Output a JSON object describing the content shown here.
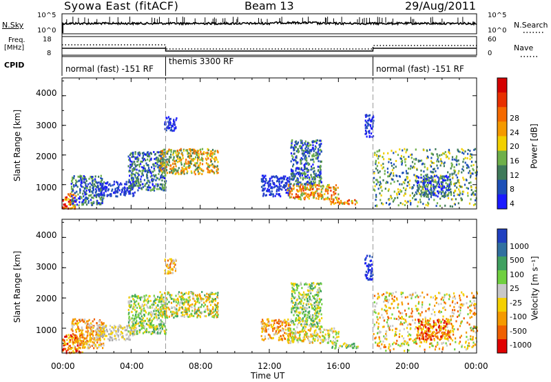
{
  "header": {
    "station": "Syowa East (fitACF)",
    "beam": "Beam 13",
    "date": "29/Aug/2011"
  },
  "noise_panel": {
    "left_label": "N.Sky",
    "right_label": "N.Search",
    "left_ticks": [
      "10^5",
      "10^0"
    ],
    "right_ticks": [
      "10^5",
      "10^0"
    ]
  },
  "freq_panel": {
    "left_label_1": "Freq.",
    "left_label_2": "[MHz]",
    "right_label": "Nave",
    "left_ticks": [
      "18",
      "8"
    ],
    "right_ticks": [
      "60",
      "0"
    ],
    "cpid_label": "CPID"
  },
  "cpid_segments": [
    {
      "label": "normal (fast) -151 RF",
      "start_hour": 0,
      "end_hour": 6
    },
    {
      "label": "themis 3300 RF",
      "start_hour": 6,
      "end_hour": 18
    },
    {
      "label": "normal (fast) -151 RF",
      "start_hour": 18,
      "end_hour": 24
    }
  ],
  "x_axis": {
    "title": "Time UT",
    "ticks": [
      "00:00",
      "04:00",
      "08:00",
      "12:00",
      "16:00",
      "20:00",
      "00:00"
    ]
  },
  "chart_data": [
    {
      "type": "heatmap",
      "panel": "power",
      "ylabel": "Slant Range [km]",
      "xlim_hours": [
        0,
        24
      ],
      "ylim_km": [
        180,
        4600
      ],
      "y_ticks": [
        1000,
        2000,
        3000,
        4000
      ],
      "colorbar_label": "Power [dB]",
      "colorbar_ticks": [
        "4",
        "8",
        "12",
        "16",
        "20",
        "24",
        "28"
      ],
      "colorbar_colors": [
        "#1a1aff",
        "#1e50b8",
        "#3f7a5a",
        "#6fb04a",
        "#f2d000",
        "#f59a00",
        "#f56a00",
        "#e83000",
        "#d40000"
      ],
      "regions": [
        {
          "t0": 0.0,
          "t1": 0.8,
          "r0": 180,
          "r1": 700,
          "palette": "red_orange"
        },
        {
          "t0": 0.5,
          "t1": 2.4,
          "r0": 300,
          "r1": 1300,
          "palette": "blue_green"
        },
        {
          "t0": 2.0,
          "t1": 4.2,
          "r0": 600,
          "r1": 1100,
          "palette": "blue"
        },
        {
          "t0": 3.8,
          "t1": 6.0,
          "r0": 800,
          "r1": 2100,
          "palette": "blue_green"
        },
        {
          "t0": 5.6,
          "t1": 9.0,
          "r0": 1350,
          "r1": 2200,
          "palette": "green_yellow_orange"
        },
        {
          "t0": 5.9,
          "t1": 6.6,
          "r0": 2800,
          "r1": 3300,
          "palette": "blue"
        },
        {
          "t0": 11.5,
          "t1": 13.2,
          "r0": 600,
          "r1": 1300,
          "palette": "blue"
        },
        {
          "t0": 13.0,
          "t1": 16.0,
          "r0": 500,
          "r1": 1000,
          "palette": "orange_yellow"
        },
        {
          "t0": 13.2,
          "t1": 15.0,
          "r0": 1000,
          "r1": 2500,
          "palette": "blue_green"
        },
        {
          "t0": 15.5,
          "t1": 17.2,
          "r0": 330,
          "r1": 500,
          "palette": "orange_yellow"
        },
        {
          "t0": 17.5,
          "t1": 18.0,
          "r0": 2600,
          "r1": 3400,
          "palette": "blue"
        },
        {
          "t0": 18.0,
          "t1": 24.0,
          "r0": 250,
          "r1": 2200,
          "palette": "blue_green_sparse"
        },
        {
          "t0": 20.5,
          "t1": 22.5,
          "r0": 600,
          "r1": 1300,
          "palette": "blue_green"
        }
      ]
    },
    {
      "type": "heatmap",
      "panel": "velocity",
      "ylabel": "Slant Range [km]",
      "xlim_hours": [
        0,
        24
      ],
      "ylim_km": [
        180,
        4600
      ],
      "y_ticks": [
        1000,
        2000,
        3000,
        4000
      ],
      "colorbar_label": "Velocity [m s⁻¹]",
      "colorbar_ticks": [
        "1000",
        "500",
        "100",
        "25",
        "-25",
        "-100",
        "-500",
        "-1000"
      ],
      "colorbar_colors": [
        "#2040c0",
        "#3070a0",
        "#3fa060",
        "#70d040",
        "#c8c8c8",
        "#f5d000",
        "#f59a00",
        "#f06000",
        "#e00000"
      ],
      "regions": [
        {
          "t0": 0.0,
          "t1": 1.2,
          "r0": 180,
          "r1": 800,
          "palette": "red_orange"
        },
        {
          "t0": 0.5,
          "t1": 2.4,
          "r0": 300,
          "r1": 1300,
          "palette": "orange_gray"
        },
        {
          "t0": 2.0,
          "t1": 4.2,
          "r0": 600,
          "r1": 1100,
          "palette": "gray"
        },
        {
          "t0": 3.8,
          "t1": 6.0,
          "r0": 800,
          "r1": 2100,
          "palette": "gray_green"
        },
        {
          "t0": 5.6,
          "t1": 9.0,
          "r0": 1350,
          "r1": 2200,
          "palette": "green_gray_orange"
        },
        {
          "t0": 5.9,
          "t1": 6.6,
          "r0": 2800,
          "r1": 3300,
          "palette": "orange_gray"
        },
        {
          "t0": 11.5,
          "t1": 13.2,
          "r0": 600,
          "r1": 1300,
          "palette": "orange_gray"
        },
        {
          "t0": 13.0,
          "t1": 16.0,
          "r0": 500,
          "r1": 1000,
          "palette": "gray_orange"
        },
        {
          "t0": 13.2,
          "t1": 15.0,
          "r0": 1000,
          "r1": 2500,
          "palette": "green_gray"
        },
        {
          "t0": 15.5,
          "t1": 17.2,
          "r0": 330,
          "r1": 500,
          "palette": "green_gray"
        },
        {
          "t0": 17.5,
          "t1": 18.0,
          "r0": 2600,
          "r1": 3400,
          "palette": "blue"
        },
        {
          "t0": 18.0,
          "t1": 24.0,
          "r0": 250,
          "r1": 2200,
          "palette": "orange_sparse"
        },
        {
          "t0": 20.5,
          "t1": 22.5,
          "r0": 600,
          "r1": 1300,
          "palette": "red_orange"
        }
      ]
    }
  ],
  "palettes": {
    "red_orange": [
      "#e00000",
      "#f06000",
      "#f59a00",
      "#f5d000"
    ],
    "blue_green": [
      "#1a1aff",
      "#1e50b8",
      "#3f7a5a",
      "#6fb04a"
    ],
    "blue": [
      "#1a1aff",
      "#1e50b8",
      "#2a3ad0"
    ],
    "green_yellow_orange": [
      "#6fb04a",
      "#3f7a5a",
      "#f2d000",
      "#f59a00",
      "#f56a00"
    ],
    "orange_yellow": [
      "#f59a00",
      "#f56a00",
      "#f2d000",
      "#e83000",
      "#6fb04a"
    ],
    "blue_green_sparse": [
      "#1e50b8",
      "#3f7a5a",
      "#6fb04a",
      "#f2d000"
    ],
    "orange_gray": [
      "#f59a00",
      "#f06000",
      "#c8c8c8",
      "#f5d000"
    ],
    "gray": [
      "#c8c8c8",
      "#a8a8a8",
      "#f5d000"
    ],
    "gray_green": [
      "#c8c8c8",
      "#70d040",
      "#3fa060",
      "#f5d000"
    ],
    "green_gray_orange": [
      "#70d040",
      "#c8c8c8",
      "#f59a00",
      "#3fa060",
      "#f5d000"
    ],
    "gray_orange": [
      "#c8c8c8",
      "#f59a00",
      "#f5d000",
      "#70d040"
    ],
    "green_gray": [
      "#70d040",
      "#3fa060",
      "#c8c8c8",
      "#f5d000"
    ],
    "orange_sparse": [
      "#f59a00",
      "#f06000",
      "#f5d000",
      "#c8c8c8",
      "#70d040"
    ]
  }
}
